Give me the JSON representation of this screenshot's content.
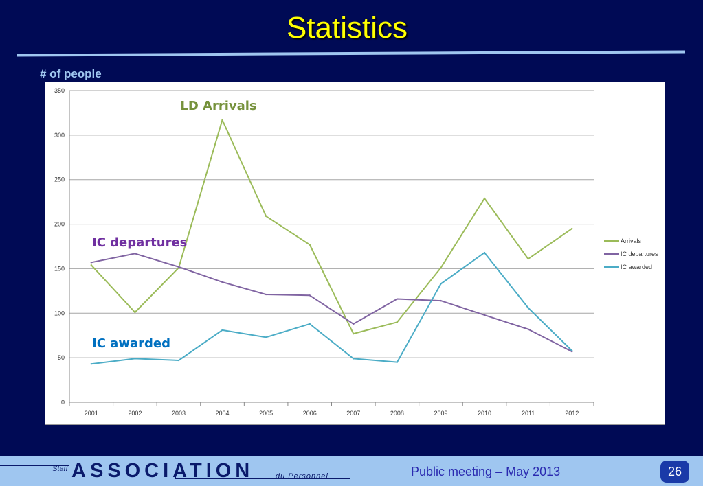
{
  "slide": {
    "title": "Statistics",
    "y_axis_label": "# of people"
  },
  "chart_data": {
    "type": "line",
    "title": "",
    "xlabel": "",
    "ylabel": "# of people",
    "categories": [
      "2001",
      "2002",
      "2003",
      "2004",
      "2005",
      "2006",
      "2007",
      "2008",
      "2009",
      "2010",
      "2011",
      "2012"
    ],
    "ylim": [
      0,
      350
    ],
    "yticks": [
      0,
      50,
      100,
      150,
      200,
      250,
      300,
      350
    ],
    "grid": true,
    "legend_position": "right",
    "series": [
      {
        "name": "Arrivals",
        "color": "#9bbb59",
        "values": [
          154,
          101,
          151,
          317,
          209,
          177,
          77,
          90,
          151,
          229,
          161,
          195
        ]
      },
      {
        "name": "IC departures",
        "color": "#8064a2",
        "values": [
          157,
          167,
          152,
          135,
          121,
          120,
          88,
          116,
          114,
          98,
          82,
          57
        ]
      },
      {
        "name": "IC awarded",
        "color": "#4bacc6",
        "values": [
          43,
          49,
          47,
          81,
          73,
          88,
          49,
          45,
          133,
          168,
          106,
          58
        ]
      }
    ],
    "annotations": [
      {
        "text": "LD Arrivals",
        "color": "#76923c"
      },
      {
        "text": "IC departures",
        "color": "#7030a0"
      },
      {
        "text": "IC awarded",
        "color": "#0070c0"
      }
    ]
  },
  "footer": {
    "staff": "Staff",
    "association": "ASSOCIATION",
    "du_personnel": "du Personnel",
    "caption": "Public meeting – May 2013",
    "page_number": "26"
  }
}
